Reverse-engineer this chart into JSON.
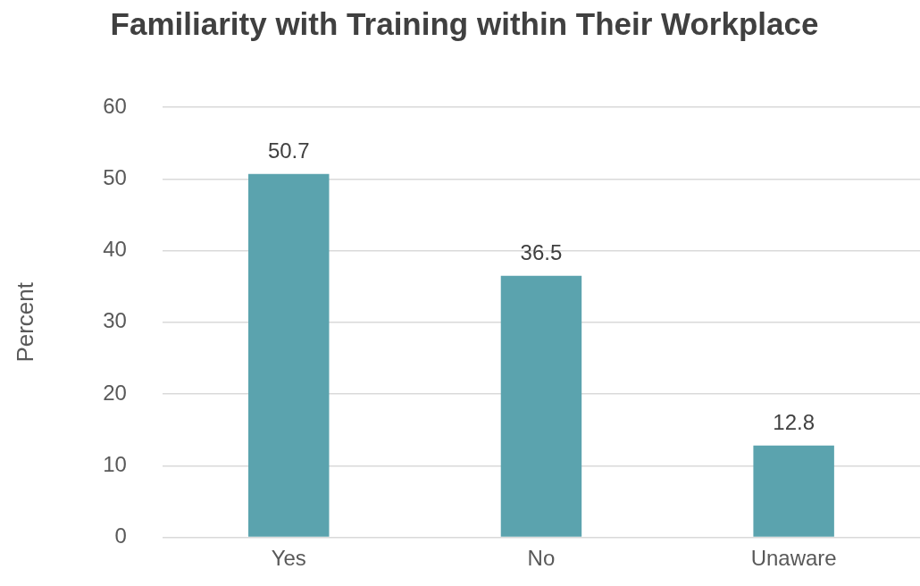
{
  "chart_data": {
    "type": "bar",
    "title": "Familiarity with Training within Their Workplace",
    "ylabel": "Percent",
    "categories": [
      "Yes",
      "No",
      "Unaware"
    ],
    "values": [
      50.7,
      36.5,
      12.8
    ],
    "color": "#5ba3ae",
    "ylim": [
      0,
      60
    ],
    "yticks": [
      0,
      10,
      20,
      30,
      40,
      50,
      60
    ],
    "grid": "y",
    "data_labels": true,
    "legend": false
  }
}
